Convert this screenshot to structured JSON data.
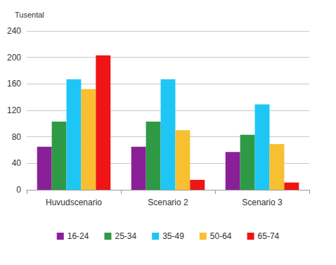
{
  "chart_data": {
    "type": "bar",
    "y_label": "Tusental",
    "categories": [
      "Huvudscenario",
      "Scenario 2",
      "Scenario 3"
    ],
    "series": [
      {
        "name": "16-24",
        "color": "#8a2098",
        "values": [
          65,
          65,
          57
        ]
      },
      {
        "name": "25-34",
        "color": "#2e9a45",
        "values": [
          103,
          103,
          83
        ]
      },
      {
        "name": "35-49",
        "color": "#1ec6f6",
        "values": [
          167,
          167,
          129
        ]
      },
      {
        "name": "50-64",
        "color": "#f8c030",
        "values": [
          152,
          90,
          69
        ]
      },
      {
        "name": "65-74",
        "color": "#f01414",
        "values": [
          203,
          15,
          11
        ]
      }
    ],
    "ylim": [
      0,
      240
    ],
    "yticks": [
      0,
      40,
      80,
      120,
      160,
      200,
      240
    ],
    "grid": true,
    "legend": "bottom"
  }
}
